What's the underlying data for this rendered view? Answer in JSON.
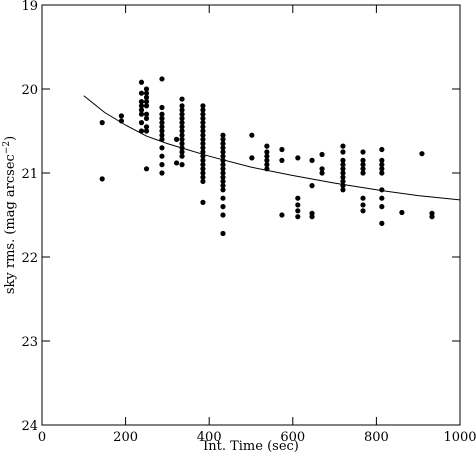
{
  "chart_data": {
    "type": "scatter",
    "xlabel": "Int. Time (sec)",
    "ylabel": "sky rms. (mag arcsec",
    "ylabel_sup": "−2",
    "ylabel_end": ")",
    "xlim": [
      0,
      1000
    ],
    "xticks": [
      0,
      200,
      400,
      600,
      800,
      1000
    ],
    "ylim": [
      19,
      24
    ],
    "yticks": [
      19,
      20,
      21,
      22,
      23,
      24
    ],
    "y_inverted": true,
    "color": "#000000",
    "points": [
      {
        "x": 144,
        "y": [
          20.4,
          21.07
        ]
      },
      {
        "x": 190,
        "y": [
          20.32,
          20.38
        ]
      },
      {
        "x": 238,
        "y": [
          19.92,
          20.05,
          20.15,
          20.2,
          20.25,
          20.3,
          20.4,
          20.5
        ]
      },
      {
        "x": 250,
        "y": [
          20.0,
          20.05,
          20.1,
          20.15,
          20.2,
          20.3,
          20.35,
          20.45,
          20.5,
          20.95
        ]
      },
      {
        "x": 287,
        "y": [
          19.88,
          20.22,
          20.3,
          20.35,
          20.4,
          20.45,
          20.5,
          20.55,
          20.6,
          20.7,
          20.8,
          20.9,
          21.0
        ]
      },
      {
        "x": 322,
        "y": [
          20.6,
          20.88
        ]
      },
      {
        "x": 335,
        "y": [
          20.12,
          20.2,
          20.25,
          20.3,
          20.35,
          20.4,
          20.45,
          20.5,
          20.55,
          20.6,
          20.65,
          20.7,
          20.75,
          20.8,
          20.9
        ]
      },
      {
        "x": 385,
        "y": [
          20.2,
          20.25,
          20.3,
          20.35,
          20.4,
          20.45,
          20.5,
          20.55,
          20.6,
          20.65,
          20.7,
          20.75,
          20.8,
          20.85,
          20.9,
          20.95,
          21.0,
          21.05,
          21.1,
          21.35
        ]
      },
      {
        "x": 433,
        "y": [
          20.55,
          20.6,
          20.65,
          20.7,
          20.75,
          20.8,
          20.85,
          20.9,
          20.95,
          21.0,
          21.05,
          21.1,
          21.15,
          21.2,
          21.3,
          21.4,
          21.5,
          21.72
        ]
      },
      {
        "x": 502,
        "y": [
          20.55,
          20.82
        ]
      },
      {
        "x": 538,
        "y": [
          20.68,
          20.75,
          20.8,
          20.85,
          20.9,
          20.95
        ]
      },
      {
        "x": 574,
        "y": [
          20.72,
          20.85,
          21.5
        ]
      },
      {
        "x": 612,
        "y": [
          20.82,
          21.3,
          21.38,
          21.45,
          21.52
        ]
      },
      {
        "x": 646,
        "y": [
          20.85,
          21.15,
          21.48,
          21.52
        ]
      },
      {
        "x": 670,
        "y": [
          20.78,
          20.95,
          21.0
        ]
      },
      {
        "x": 720,
        "y": [
          20.68,
          20.75,
          20.85,
          20.9,
          20.95,
          21.0,
          21.05,
          21.1,
          21.15,
          21.2
        ]
      },
      {
        "x": 768,
        "y": [
          20.75,
          20.85,
          20.9,
          20.95,
          21.0,
          21.3,
          21.38,
          21.45
        ]
      },
      {
        "x": 813,
        "y": [
          20.72,
          20.85,
          20.9,
          20.95,
          21.0,
          21.2,
          21.3,
          21.4,
          21.6
        ]
      },
      {
        "x": 861,
        "y": [
          21.47
        ]
      },
      {
        "x": 909,
        "y": [
          20.77
        ]
      },
      {
        "x": 933,
        "y": [
          21.48,
          21.52
        ]
      }
    ],
    "curve": {
      "x": [
        100,
        150,
        200,
        250,
        300,
        400,
        500,
        600,
        700,
        800,
        900,
        1000
      ],
      "y": [
        20.08,
        20.28,
        20.43,
        20.56,
        20.65,
        20.8,
        20.93,
        21.03,
        21.12,
        21.2,
        21.27,
        21.32
      ]
    }
  }
}
